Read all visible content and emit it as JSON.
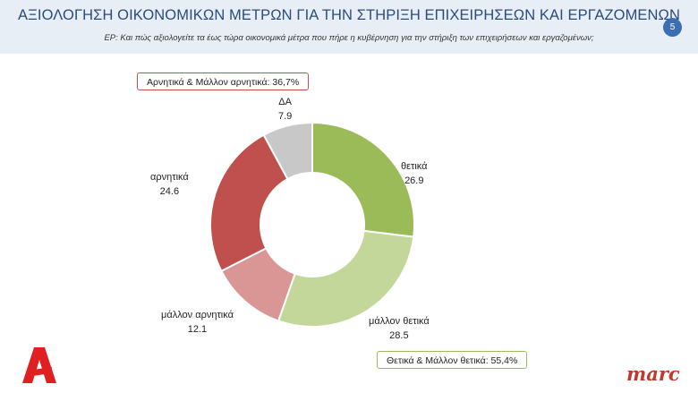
{
  "header": {
    "title": "ΑΞΙΟΛΟΓΗΣΗ ΟΙΚΟΝΟΜΙΚΩΝ ΜΕΤΡΩΝ ΓΙΑ ΤΗΝ ΣΤΗΡΙΞΗ ΕΠΙΧΕΙΡΗΣΕΩΝ ΚΑΙ ΕΡΓΑΖΟΜΕΝΩΝ",
    "subtitle": "ΕΡ: Και πώς αξιολογείτε τα έως τώρα οικονομικά μέτρα που πήρε η κυβέρνηση για την στήριξη των επιχειρήσεων και εργαζομένων;",
    "page_number": "5"
  },
  "summaries": {
    "negative": "Αρνητικά & Μάλλον αρνητικά: 36,7%",
    "positive": "Θετικά & Μάλλον θετικά: 55,4%"
  },
  "logos": {
    "right": "marc"
  },
  "colors": {
    "header_bg": "#e8eef6",
    "title": "#2b4b7a",
    "badge": "#3d6eb3",
    "positive_box": "#9bbb59",
    "negative_box": "#c0504d"
  },
  "chart_data": {
    "type": "pie",
    "donut": true,
    "title": "",
    "slices": [
      {
        "label": "θετικά",
        "value": 26.9,
        "value_text": "26.9",
        "color": "#9bbb59"
      },
      {
        "label": "μάλλον θετικά",
        "value": 28.5,
        "value_text": "28.5",
        "color": "#c4d79b"
      },
      {
        "label": "μάλλον αρνητικά",
        "value": 12.1,
        "value_text": "12.1",
        "color": "#da9694"
      },
      {
        "label": "αρνητικά",
        "value": 24.6,
        "value_text": "24.6",
        "color": "#c0504d"
      },
      {
        "label": "ΔΑ",
        "value": 7.9,
        "value_text": "7.9",
        "color": "#c8c8c8"
      }
    ]
  }
}
